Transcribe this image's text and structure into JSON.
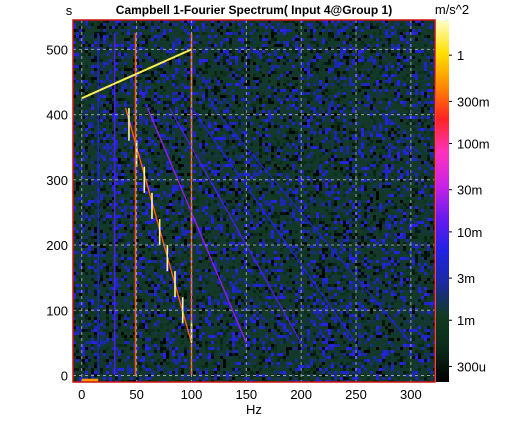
{
  "chart_data": {
    "type": "heatmap",
    "title": "Campbell 1-Fourier Spectrum( Input 4@Group 1)",
    "xlabel": "Hz",
    "ylabel": "s",
    "colorbar_unit": "m/s^2",
    "xlim": [
      -8,
      322
    ],
    "ylim": [
      -10,
      545
    ],
    "x_ticks": [
      0,
      50,
      100,
      150,
      200,
      250,
      300
    ],
    "y_ticks": [
      0,
      100,
      200,
      300,
      400,
      500
    ],
    "colorbar_ticks": [
      {
        "value": 1,
        "label": "1"
      },
      {
        "value": 0.3,
        "label": "300m"
      },
      {
        "value": 0.1,
        "label": "100m"
      },
      {
        "value": 0.03,
        "label": "30m"
      },
      {
        "value": 0.01,
        "label": "10m"
      },
      {
        "value": 0.003,
        "label": "3m"
      },
      {
        "value": 0.001,
        "label": "1m"
      },
      {
        "value": 0.0003,
        "label": "300u"
      }
    ],
    "colorbar_range": [
      0.0002,
      2.5
    ],
    "colormap": [
      "#000000",
      "#0a2a18",
      "#123a20",
      "#1a2aa0",
      "#2222e6",
      "#6a1aee",
      "#cc22e6",
      "#ff33bb",
      "#ff2222",
      "#ff8a00",
      "#ffe000",
      "#ffffcc"
    ],
    "background_level": 0.0012,
    "grid": true,
    "grid_color": "#9aa0a6",
    "frame_color": "#cc1111",
    "orders": [
      {
        "order": 1,
        "t": [
          0,
          420,
          480,
          525
        ],
        "f": [
          15,
          15,
          15,
          15
        ],
        "level": 0.004
      },
      {
        "order": 2,
        "t": [
          0,
          420,
          480,
          525
        ],
        "f": [
          30,
          30,
          30,
          30
        ],
        "level": 0.01
      },
      {
        "order": 3,
        "t": [
          0,
          420,
          480,
          525
        ],
        "f": [
          49,
          49,
          49,
          49
        ],
        "level": 0.3
      },
      {
        "order": 4,
        "t": [
          0,
          420,
          480,
          525
        ],
        "f": [
          100,
          100,
          100,
          100
        ],
        "level": 0.3
      }
    ],
    "ramp_orders": [
      {
        "t": [
          50,
          410
        ],
        "f": [
          100,
          40
        ],
        "level": 0.3
      },
      {
        "t": [
          50,
          410
        ],
        "f": [
          150,
          60
        ],
        "level": 0.02
      },
      {
        "t": [
          50,
          410
        ],
        "f": [
          200,
          80
        ],
        "level": 0.01
      },
      {
        "t": [
          50,
          410
        ],
        "f": [
          250,
          100
        ],
        "level": 0.006
      },
      {
        "t": [
          50,
          410
        ],
        "f": [
          300,
          120
        ],
        "level": 0.004
      }
    ],
    "chirp": {
      "t": [
        425,
        500
      ],
      "f": [
        0,
        100
      ],
      "level": 1.5
    },
    "speed_steps": [
      {
        "t": [
          50,
          80
        ],
        "f": 100
      },
      {
        "t": [
          80,
          120
        ],
        "f": 92
      },
      {
        "t": [
          120,
          160
        ],
        "f": 85
      },
      {
        "t": [
          160,
          200
        ],
        "f": 78
      },
      {
        "t": [
          200,
          240
        ],
        "f": 71
      },
      {
        "t": [
          240,
          280
        ],
        "f": 64
      },
      {
        "t": [
          280,
          320
        ],
        "f": 57
      },
      {
        "t": [
          320,
          360
        ],
        "f": 50
      },
      {
        "t": [
          360,
          410
        ],
        "f": 43
      }
    ],
    "bright_steps_level": 2.0,
    "start_marker": {
      "f": [
        0,
        15
      ],
      "t": -8,
      "color": "#ff9900"
    }
  }
}
